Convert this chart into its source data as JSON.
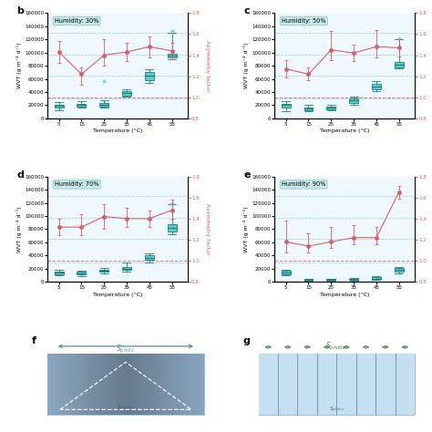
{
  "panels": [
    {
      "label": "b",
      "humidity": "Humidity: 30%",
      "temps": [
        5,
        15,
        25,
        35,
        45,
        55
      ],
      "wvt_boxes": [
        {
          "med": 19000,
          "q1": 16000,
          "q3": 21000,
          "whislo": 12000,
          "whishi": 25000,
          "fliers_hi": null,
          "fliers_lo": null
        },
        {
          "med": 20000,
          "q1": 18000,
          "q3": 22000,
          "whislo": 16000,
          "whishi": 26000,
          "fliers_hi": null,
          "fliers_lo": null
        },
        {
          "med": 20000,
          "q1": 18000,
          "q3": 24000,
          "whislo": 16000,
          "whishi": 27000,
          "fliers_hi": 56000,
          "fliers_lo": null
        },
        {
          "med": 38000,
          "q1": 35000,
          "q3": 42000,
          "whislo": 33000,
          "whishi": 44000,
          "fliers_hi": null,
          "fliers_lo": null
        },
        {
          "med": 65000,
          "q1": 58000,
          "q3": 70000,
          "whislo": 54000,
          "whishi": 74000,
          "fliers_hi": null,
          "fliers_lo": null
        },
        {
          "med": 95000,
          "q1": 92000,
          "q3": 98000,
          "whislo": 90000,
          "whishi": 130000,
          "fliers_hi": 133000,
          "fliers_lo": null
        }
      ],
      "asym_vals": [
        1.43,
        1.22,
        1.4,
        1.43,
        1.48,
        1.44
      ],
      "asym_errs_hi": [
        0.1,
        0.06,
        0.15,
        0.09,
        0.1,
        0.08
      ],
      "asym_errs_lo": [
        0.1,
        0.1,
        0.1,
        0.09,
        0.1,
        0.08
      ],
      "hlines_wvt": [
        30000,
        65000,
        97000,
        130000
      ],
      "hline_asym": 1.0
    },
    {
      "label": "c",
      "humidity": "Humidity: 50%",
      "temps": [
        5,
        15,
        25,
        35,
        45,
        55
      ],
      "wvt_boxes": [
        {
          "med": 20000,
          "q1": 16000,
          "q3": 22000,
          "whislo": 11000,
          "whishi": 26000,
          "fliers_hi": null,
          "fliers_lo": null
        },
        {
          "med": 15000,
          "q1": 13000,
          "q3": 17000,
          "whislo": 11000,
          "whishi": 20000,
          "fliers_hi": null,
          "fliers_lo": null
        },
        {
          "med": 16000,
          "q1": 14000,
          "q3": 18000,
          "whislo": 12000,
          "whishi": 20000,
          "fliers_hi": null,
          "fliers_lo": null
        },
        {
          "med": 27000,
          "q1": 24000,
          "q3": 30000,
          "whislo": 21000,
          "whishi": 33000,
          "fliers_hi": null,
          "fliers_lo": null
        },
        {
          "med": 48000,
          "q1": 44000,
          "q3": 53000,
          "whislo": 42000,
          "whishi": 56000,
          "fliers_hi": null,
          "fliers_lo": null
        },
        {
          "med": 82000,
          "q1": 78000,
          "q3": 86000,
          "whislo": 76000,
          "whishi": 120000,
          "fliers_hi": 122000,
          "fliers_lo": null
        }
      ],
      "asym_vals": [
        1.27,
        1.22,
        1.45,
        1.42,
        1.48,
        1.47
      ],
      "asym_errs_hi": [
        0.08,
        0.06,
        0.18,
        0.08,
        0.16,
        0.08
      ],
      "asym_errs_lo": [
        0.08,
        0.06,
        0.1,
        0.08,
        0.1,
        0.08
      ],
      "hlines_wvt": [
        30000,
        65000,
        97000,
        130000
      ],
      "hline_asym": 1.0
    },
    {
      "label": "d",
      "humidity": "Humidity: 70%",
      "temps": [
        5,
        15,
        25,
        35,
        45,
        55
      ],
      "wvt_boxes": [
        {
          "med": 14000,
          "q1": 12000,
          "q3": 16000,
          "whislo": 10000,
          "whishi": 18000,
          "fliers_hi": null,
          "fliers_lo": null
        },
        {
          "med": 13000,
          "q1": 11000,
          "q3": 15000,
          "whislo": 9000,
          "whishi": 17000,
          "fliers_hi": null,
          "fliers_lo": null
        },
        {
          "med": 17000,
          "q1": 15000,
          "q3": 19000,
          "whislo": 13000,
          "whishi": 21000,
          "fliers_hi": null,
          "fliers_lo": null
        },
        {
          "med": 20000,
          "q1": 18000,
          "q3": 22000,
          "whislo": 16000,
          "whishi": 30000,
          "fliers_hi": null,
          "fliers_lo": null
        },
        {
          "med": 37000,
          "q1": 33000,
          "q3": 40000,
          "whislo": 30000,
          "whishi": 43000,
          "fliers_hi": null,
          "fliers_lo": null
        },
        {
          "med": 82000,
          "q1": 76000,
          "q3": 88000,
          "whislo": 72000,
          "whishi": 118000,
          "fliers_hi": 120000,
          "fliers_lo": null
        }
      ],
      "asym_vals": [
        1.32,
        1.32,
        1.42,
        1.4,
        1.4,
        1.48
      ],
      "asym_errs_hi": [
        0.08,
        0.12,
        0.12,
        0.1,
        0.08,
        0.1
      ],
      "asym_errs_lo": [
        0.08,
        0.08,
        0.12,
        0.08,
        0.08,
        0.08
      ],
      "hlines_wvt": [
        30000,
        65000,
        97000,
        130000
      ],
      "hline_asym": 1.0
    },
    {
      "label": "e",
      "humidity": "Humidity: 90%",
      "temps": [
        5,
        15,
        25,
        35,
        45,
        55
      ],
      "wvt_boxes": [
        {
          "med": 14000,
          "q1": 12000,
          "q3": 17000,
          "whislo": 10000,
          "whishi": 19000,
          "fliers_hi": null,
          "fliers_lo": null
        },
        {
          "med": 3000,
          "q1": 2000,
          "q3": 4000,
          "whislo": 1000,
          "whishi": 5000,
          "fliers_hi": null,
          "fliers_lo": null
        },
        {
          "med": 3000,
          "q1": 2000,
          "q3": 4000,
          "whislo": 1000,
          "whishi": 5000,
          "fliers_hi": null,
          "fliers_lo": null
        },
        {
          "med": 4000,
          "q1": 3000,
          "q3": 5000,
          "whislo": 2000,
          "whishi": 6000,
          "fliers_hi": null,
          "fliers_lo": null
        },
        {
          "med": 5000,
          "q1": 4000,
          "q3": 7000,
          "whislo": 3000,
          "whishi": 9000,
          "fliers_hi": null,
          "fliers_lo": null
        },
        {
          "med": 18000,
          "q1": 15000,
          "q3": 21000,
          "whislo": 13000,
          "whishi": 23000,
          "fliers_hi": null,
          "fliers_lo": null
        }
      ],
      "asym_vals": [
        1.18,
        1.14,
        1.18,
        1.22,
        1.22,
        1.65
      ],
      "asym_errs_hi": [
        0.2,
        0.12,
        0.14,
        0.12,
        0.1,
        0.06
      ],
      "asym_errs_lo": [
        0.1,
        0.06,
        0.06,
        0.06,
        0.06,
        0.06
      ],
      "hlines_wvt": [
        30000,
        65000,
        97000,
        130000
      ],
      "hline_asym": 1.0
    }
  ],
  "box_color_light": "#5ECECE",
  "box_color_dark": "#1A8080",
  "asym_color": "#D96060",
  "hline_wvt_color": "#7EC8C8",
  "hline_asym_color": "#D96060",
  "background_color": "#FFFFFF",
  "label_box_facecolor": "#C8EAEA",
  "label_box_edgecolor": "#88CCCC",
  "ylim_wvt": [
    0,
    160000
  ],
  "ylim_asym": [
    0.8,
    1.8
  ],
  "yticks_wvt": [
    0,
    20000,
    40000,
    60000,
    80000,
    100000,
    120000,
    140000,
    160000
  ],
  "ytick_labels_wvt": [
    "0",
    "20000",
    "40000",
    "60000",
    "80000",
    "100000",
    "120000",
    "140000",
    "160000"
  ],
  "yticks_asym": [
    0.8,
    1.0,
    1.2,
    1.4,
    1.6,
    1.8
  ],
  "temps": [
    5,
    15,
    25,
    35,
    45,
    55
  ]
}
